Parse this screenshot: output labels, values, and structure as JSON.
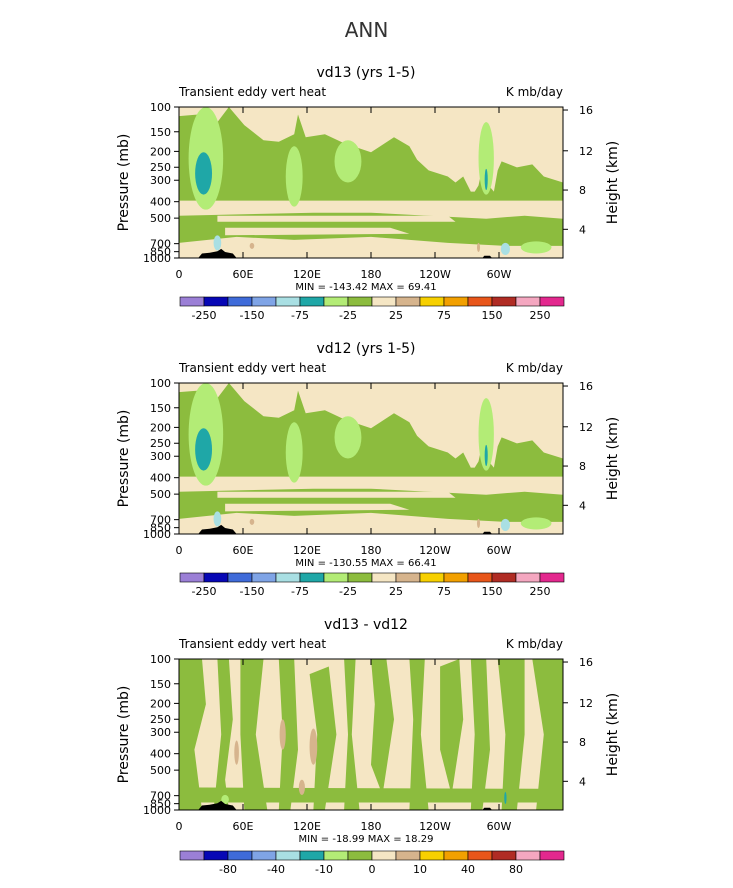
{
  "page_title": "ANN",
  "colors": {
    "levels": [
      "#9b7fd6",
      "#0707b5",
      "#3f6bd9",
      "#7fa4e6",
      "#a9dfe3",
      "#1fa7a7",
      "#b3ec76",
      "#8cbc3e",
      "#f5e6c4",
      "#d6b48d",
      "#f7d000",
      "#f2a000",
      "#e8561a",
      "#b02c24",
      "#f4a7c0",
      "#e3288e"
    ],
    "background": "#f5e6c4",
    "terrain": "#000000"
  },
  "chart_data": [
    {
      "type": "contour",
      "title": "vd13 (yrs 1-5)",
      "left_label": "Transient eddy vert heat",
      "right_label": "K mb/day",
      "ylabel": "Pressure (mb)",
      "ylabel_right": "Height (km)",
      "x_ticks": [
        "0",
        "60E",
        "120E",
        "180",
        "120W",
        "60W"
      ],
      "y_ticks": [
        "100",
        "150",
        "200",
        "250",
        "300",
        "400",
        "500",
        "700",
        "850",
        "1000"
      ],
      "height_ticks": [
        "16",
        "12",
        "8",
        "4"
      ],
      "stats": "MIN = -143.42 MAX = 69.41",
      "colorbar_labels": [
        "-250",
        "-150",
        "-75",
        "-25",
        "25",
        "75",
        "150",
        "250"
      ]
    },
    {
      "type": "contour",
      "title": "vd12 (yrs 1-5)",
      "left_label": "Transient eddy vert heat",
      "right_label": "K mb/day",
      "ylabel": "Pressure (mb)",
      "ylabel_right": "Height (km)",
      "x_ticks": [
        "0",
        "60E",
        "120E",
        "180",
        "120W",
        "60W"
      ],
      "y_ticks": [
        "100",
        "150",
        "200",
        "250",
        "300",
        "400",
        "500",
        "700",
        "850",
        "1000"
      ],
      "height_ticks": [
        "16",
        "12",
        "8",
        "4"
      ],
      "stats": "MIN = -130.55 MAX = 66.41",
      "colorbar_labels": [
        "-250",
        "-150",
        "-75",
        "-25",
        "25",
        "75",
        "150",
        "250"
      ]
    },
    {
      "type": "contour",
      "title": "vd13 - vd12",
      "left_label": "Transient eddy vert heat",
      "right_label": "K mb/day",
      "ylabel": "Pressure (mb)",
      "ylabel_right": "Height (km)",
      "x_ticks": [
        "0",
        "60E",
        "120E",
        "180",
        "120W",
        "60W"
      ],
      "y_ticks": [
        "100",
        "150",
        "200",
        "250",
        "300",
        "400",
        "500",
        "700",
        "850",
        "1000"
      ],
      "height_ticks": [
        "16",
        "12",
        "8",
        "4"
      ],
      "stats": "MIN = -18.99 MAX = 18.29",
      "colorbar_labels": [
        "-80",
        "-40",
        "-10",
        "0",
        "10",
        "40",
        "80"
      ]
    }
  ]
}
